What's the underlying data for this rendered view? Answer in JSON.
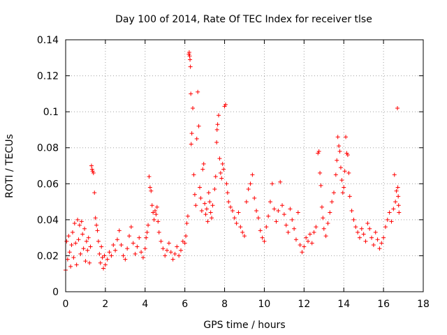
{
  "chart_data": {
    "type": "scatter",
    "title": "Day 100 of 2014, Rate Of TEC Index for receiver tlse",
    "xlabel": "GPS time / hours",
    "ylabel": "ROTI / TECUs",
    "xlim": [
      0,
      18
    ],
    "ylim": [
      0,
      0.14
    ],
    "x_ticks": [
      0,
      2,
      4,
      6,
      8,
      10,
      12,
      14,
      16,
      18
    ],
    "x_tick_labels": [
      "0",
      "2",
      "4",
      "6",
      "8",
      "10",
      "12",
      "14",
      "16",
      "18"
    ],
    "y_ticks": [
      0,
      0.02,
      0.04,
      0.06,
      0.08,
      0.1,
      0.12,
      0.14
    ],
    "y_tick_labels": [
      "0",
      "0.02",
      "0.04",
      "0.06",
      "0.08",
      "0.1",
      "0.12",
      "0.14"
    ],
    "grid": true,
    "marker": "plus",
    "color": "#ff0000",
    "series": [
      {
        "name": "ROTI",
        "points": [
          [
            0.0,
            0.012
          ],
          [
            0.05,
            0.028
          ],
          [
            0.1,
            0.018
          ],
          [
            0.15,
            0.031
          ],
          [
            0.2,
            0.022
          ],
          [
            0.25,
            0.014
          ],
          [
            0.3,
            0.026
          ],
          [
            0.35,
            0.033
          ],
          [
            0.4,
            0.019
          ],
          [
            0.45,
            0.038
          ],
          [
            0.5,
            0.027
          ],
          [
            0.55,
            0.015
          ],
          [
            0.6,
            0.04
          ],
          [
            0.65,
            0.029
          ],
          [
            0.7,
            0.037
          ],
          [
            0.75,
            0.021
          ],
          [
            0.8,
            0.039
          ],
          [
            0.85,
            0.032
          ],
          [
            0.9,
            0.024
          ],
          [
            0.95,
            0.035
          ],
          [
            1.0,
            0.017
          ],
          [
            1.05,
            0.028
          ],
          [
            1.1,
            0.023
          ],
          [
            1.15,
            0.03
          ],
          [
            1.2,
            0.016
          ],
          [
            1.25,
            0.025
          ],
          [
            1.3,
            0.07
          ],
          [
            1.33,
            0.068
          ],
          [
            1.36,
            0.067
          ],
          [
            1.4,
            0.066
          ],
          [
            1.45,
            0.055
          ],
          [
            1.5,
            0.041
          ],
          [
            1.55,
            0.037
          ],
          [
            1.6,
            0.034
          ],
          [
            1.65,
            0.028
          ],
          [
            1.7,
            0.021
          ],
          [
            1.75,
            0.016
          ],
          [
            1.8,
            0.025
          ],
          [
            1.85,
            0.019
          ],
          [
            1.9,
            0.013
          ],
          [
            1.95,
            0.02
          ],
          [
            2.0,
            0.015
          ],
          [
            2.1,
            0.018
          ],
          [
            2.2,
            0.022
          ],
          [
            2.3,
            0.02
          ],
          [
            2.4,
            0.026
          ],
          [
            2.5,
            0.023
          ],
          [
            2.6,
            0.029
          ],
          [
            2.7,
            0.034
          ],
          [
            2.8,
            0.026
          ],
          [
            2.9,
            0.02
          ],
          [
            3.0,
            0.018
          ],
          [
            3.1,
            0.024
          ],
          [
            3.2,
            0.031
          ],
          [
            3.3,
            0.036
          ],
          [
            3.4,
            0.027
          ],
          [
            3.5,
            0.021
          ],
          [
            3.6,
            0.025
          ],
          [
            3.7,
            0.03
          ],
          [
            3.8,
            0.022
          ],
          [
            3.9,
            0.019
          ],
          [
            4.0,
            0.024
          ],
          [
            4.05,
            0.03
          ],
          [
            4.1,
            0.033
          ],
          [
            4.15,
            0.037
          ],
          [
            4.2,
            0.064
          ],
          [
            4.25,
            0.058
          ],
          [
            4.3,
            0.056
          ],
          [
            4.35,
            0.048
          ],
          [
            4.4,
            0.044
          ],
          [
            4.45,
            0.04
          ],
          [
            4.5,
            0.045
          ],
          [
            4.55,
            0.043
          ],
          [
            4.6,
            0.047
          ],
          [
            4.65,
            0.039
          ],
          [
            4.7,
            0.033
          ],
          [
            4.8,
            0.028
          ],
          [
            4.9,
            0.024
          ],
          [
            5.0,
            0.02
          ],
          [
            5.1,
            0.023
          ],
          [
            5.2,
            0.027
          ],
          [
            5.3,
            0.022
          ],
          [
            5.4,
            0.018
          ],
          [
            5.5,
            0.021
          ],
          [
            5.6,
            0.025
          ],
          [
            5.7,
            0.02
          ],
          [
            5.8,
            0.023
          ],
          [
            5.9,
            0.028
          ],
          [
            6.0,
            0.027
          ],
          [
            6.05,
            0.031
          ],
          [
            6.1,
            0.038
          ],
          [
            6.15,
            0.042
          ],
          [
            6.2,
            0.132
          ],
          [
            6.22,
            0.133
          ],
          [
            6.24,
            0.131
          ],
          [
            6.26,
            0.129
          ],
          [
            6.28,
            0.125
          ],
          [
            6.3,
            0.11
          ],
          [
            6.32,
            0.082
          ],
          [
            6.35,
            0.088
          ],
          [
            6.4,
            0.102
          ],
          [
            6.45,
            0.065
          ],
          [
            6.5,
            0.054
          ],
          [
            6.55,
            0.048
          ],
          [
            6.6,
            0.085
          ],
          [
            6.65,
            0.111
          ],
          [
            6.7,
            0.092
          ],
          [
            6.75,
            0.058
          ],
          [
            6.8,
            0.052
          ],
          [
            6.85,
            0.045
          ],
          [
            6.9,
            0.068
          ],
          [
            6.95,
            0.071
          ],
          [
            7.0,
            0.049
          ],
          [
            7.05,
            0.043
          ],
          [
            7.1,
            0.046
          ],
          [
            7.15,
            0.039
          ],
          [
            7.2,
            0.055
          ],
          [
            7.25,
            0.05
          ],
          [
            7.3,
            0.044
          ],
          [
            7.35,
            0.041
          ],
          [
            7.4,
            0.048
          ],
          [
            7.5,
            0.057
          ],
          [
            7.55,
            0.064
          ],
          [
            7.6,
            0.083
          ],
          [
            7.62,
            0.09
          ],
          [
            7.65,
            0.093
          ],
          [
            7.7,
            0.098
          ],
          [
            7.75,
            0.074
          ],
          [
            7.8,
            0.066
          ],
          [
            7.85,
            0.063
          ],
          [
            7.9,
            0.071
          ],
          [
            7.95,
            0.068
          ],
          [
            8.0,
            0.103
          ],
          [
            8.05,
            0.104
          ],
          [
            8.1,
            0.06
          ],
          [
            8.15,
            0.055
          ],
          [
            8.2,
            0.05
          ],
          [
            8.3,
            0.047
          ],
          [
            8.4,
            0.045
          ],
          [
            8.5,
            0.041
          ],
          [
            8.6,
            0.038
          ],
          [
            8.7,
            0.044
          ],
          [
            8.8,
            0.036
          ],
          [
            8.9,
            0.033
          ],
          [
            9.0,
            0.031
          ],
          [
            9.1,
            0.05
          ],
          [
            9.2,
            0.057
          ],
          [
            9.3,
            0.06
          ],
          [
            9.4,
            0.065
          ],
          [
            9.5,
            0.052
          ],
          [
            9.6,
            0.045
          ],
          [
            9.7,
            0.041
          ],
          [
            9.8,
            0.034
          ],
          [
            9.9,
            0.03
          ],
          [
            10.0,
            0.028
          ],
          [
            10.1,
            0.036
          ],
          [
            10.2,
            0.042
          ],
          [
            10.3,
            0.05
          ],
          [
            10.4,
            0.06
          ],
          [
            10.5,
            0.046
          ],
          [
            10.6,
            0.039
          ],
          [
            10.7,
            0.045
          ],
          [
            10.8,
            0.061
          ],
          [
            10.9,
            0.048
          ],
          [
            11.0,
            0.043
          ],
          [
            11.1,
            0.037
          ],
          [
            11.2,
            0.033
          ],
          [
            11.3,
            0.046
          ],
          [
            11.4,
            0.04
          ],
          [
            11.5,
            0.035
          ],
          [
            11.6,
            0.029
          ],
          [
            11.7,
            0.044
          ],
          [
            11.8,
            0.026
          ],
          [
            11.9,
            0.022
          ],
          [
            12.0,
            0.025
          ],
          [
            12.1,
            0.03
          ],
          [
            12.2,
            0.028
          ],
          [
            12.3,
            0.032
          ],
          [
            12.4,
            0.027
          ],
          [
            12.5,
            0.033
          ],
          [
            12.6,
            0.036
          ],
          [
            12.7,
            0.077
          ],
          [
            12.75,
            0.078
          ],
          [
            12.8,
            0.066
          ],
          [
            12.85,
            0.059
          ],
          [
            12.9,
            0.047
          ],
          [
            12.95,
            0.041
          ],
          [
            13.0,
            0.035
          ],
          [
            13.1,
            0.031
          ],
          [
            13.2,
            0.038
          ],
          [
            13.3,
            0.044
          ],
          [
            13.4,
            0.05
          ],
          [
            13.5,
            0.055
          ],
          [
            13.6,
            0.065
          ],
          [
            13.65,
            0.073
          ],
          [
            13.7,
            0.086
          ],
          [
            13.75,
            0.081
          ],
          [
            13.8,
            0.078
          ],
          [
            13.85,
            0.069
          ],
          [
            13.9,
            0.062
          ],
          [
            13.95,
            0.055
          ],
          [
            14.0,
            0.058
          ],
          [
            14.05,
            0.067
          ],
          [
            14.1,
            0.086
          ],
          [
            14.15,
            0.077
          ],
          [
            14.2,
            0.076
          ],
          [
            14.25,
            0.066
          ],
          [
            14.3,
            0.053
          ],
          [
            14.4,
            0.045
          ],
          [
            14.5,
            0.04
          ],
          [
            14.6,
            0.036
          ],
          [
            14.7,
            0.033
          ],
          [
            14.8,
            0.03
          ],
          [
            14.9,
            0.035
          ],
          [
            15.0,
            0.032
          ],
          [
            15.1,
            0.028
          ],
          [
            15.2,
            0.038
          ],
          [
            15.3,
            0.035
          ],
          [
            15.4,
            0.03
          ],
          [
            15.5,
            0.026
          ],
          [
            15.6,
            0.033
          ],
          [
            15.7,
            0.029
          ],
          [
            15.8,
            0.024
          ],
          [
            15.9,
            0.027
          ],
          [
            16.0,
            0.03
          ],
          [
            16.1,
            0.036
          ],
          [
            16.2,
            0.04
          ],
          [
            16.3,
            0.044
          ],
          [
            16.4,
            0.039
          ],
          [
            16.5,
            0.046
          ],
          [
            16.55,
            0.065
          ],
          [
            16.6,
            0.05
          ],
          [
            16.65,
            0.056
          ],
          [
            16.7,
            0.102
          ],
          [
            16.72,
            0.058
          ],
          [
            16.74,
            0.053
          ],
          [
            16.76,
            0.048
          ],
          [
            16.78,
            0.044
          ]
        ]
      }
    ]
  }
}
